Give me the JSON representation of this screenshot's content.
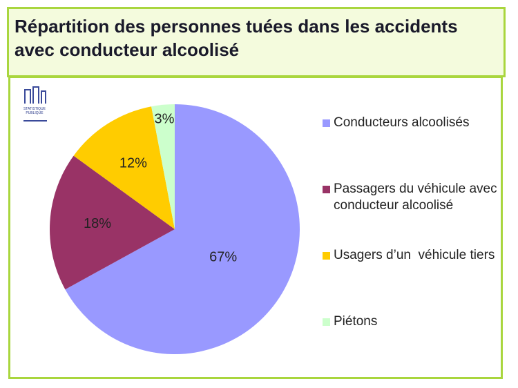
{
  "chart_data": {
    "type": "pie",
    "title": "Répartition des personnes tuées dans les accidents avec conducteur alcoolisé",
    "categories": [
      "Conducteurs alcoolisés",
      "Passagers du véhicule avec conducteur alcoolisé",
      "Usagers d’un  véhicule tiers",
      "Piétons"
    ],
    "values": [
      67,
      18,
      12,
      3
    ],
    "value_labels": [
      "67%",
      "18%",
      "12%",
      "3%"
    ],
    "colors": [
      "#9999ff",
      "#993366",
      "#ffcc00",
      "#ccffcc"
    ],
    "legend": "right"
  },
  "logo": {
    "lines": [
      "STATISTIQUE",
      "PUBLIQUE"
    ]
  }
}
